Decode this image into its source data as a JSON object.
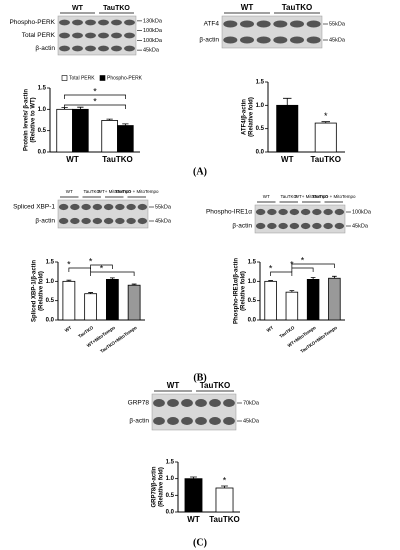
{
  "chart_data": [
    {
      "type": "bar",
      "blot": {
        "groups": [
          "WT",
          "TauTKO"
        ],
        "rows": [
          "Phospho-PERK",
          "Total PERK",
          "β-actin"
        ],
        "markers": [
          "130kDa",
          "100kDa",
          "100kDa",
          "45kDa"
        ]
      },
      "categories": [
        "WT",
        "TauTKO"
      ],
      "series": [
        {
          "name": "Total PERK",
          "color": "#ffffff",
          "values": [
            1.0,
            0.74
          ],
          "errors": [
            0.04,
            0.03
          ]
        },
        {
          "name": "Phospho-PERK",
          "color": "#000000",
          "values": [
            1.0,
            0.62
          ],
          "errors": [
            0.05,
            0.04
          ]
        }
      ],
      "ylabel": [
        "Protein levels/ β-actin",
        "(Relative to WT)"
      ],
      "ylim": [
        0,
        1.5
      ],
      "yticks": [
        {
          "value": 0,
          "label": "0.0"
        },
        0.5,
        {
          "value": 1,
          "label": "1.0"
        },
        1.5
      ],
      "annotations": [
        "*",
        "*"
      ]
    },
    {
      "type": "bar",
      "blot": {
        "groups": [
          "WT",
          "TauTKO"
        ],
        "rows": [
          "ATF4",
          "β-actin"
        ],
        "markers": [
          "55kDa",
          "45kDa"
        ]
      },
      "categories": [
        "WT",
        "TauTKO"
      ],
      "values": [
        1.0,
        0.62
      ],
      "errors": [
        0.15,
        0.03
      ],
      "colors": [
        "#000000",
        "#ffffff"
      ],
      "ylabel": [
        "ATF4/β-actin",
        "(Relative fold)"
      ],
      "ylim": [
        0,
        1.5
      ],
      "yticks": [
        {
          "value": 0,
          "label": "0.0"
        },
        0.5,
        {
          "value": 1,
          "label": "1.0"
        },
        1.5
      ],
      "annotations": [
        "*"
      ],
      "panel_label": "(A)"
    },
    {
      "type": "bar",
      "blot": {
        "groups": [
          "WT",
          "TauTKO",
          "WT+ MitoTempo",
          "TauTKO + MitoTempo"
        ],
        "rows": [
          "Spliced XBP-1",
          "β-actin"
        ],
        "markers": [
          "55kDa",
          "45kDa"
        ]
      },
      "categories": [
        "WT",
        "TauTKO",
        "WT+MitoTempo",
        "TauTKO+MitoTempo"
      ],
      "values": [
        1.0,
        0.68,
        1.05,
        0.9
      ],
      "errors": [
        0.03,
        0.03,
        0.04,
        0.03
      ],
      "colors": [
        "#ffffff",
        "#ffffff",
        "#000000",
        "#999999"
      ],
      "ylabel": [
        "Spliced XBP-1/β-actin",
        "(Relative fold)"
      ],
      "ylim": [
        0,
        1.5
      ],
      "yticks": [
        {
          "value": 0,
          "label": "0.0"
        },
        0.5,
        {
          "value": 1,
          "label": "1.0"
        },
        1.5
      ],
      "annotations": [
        "*",
        "*",
        "*"
      ],
      "panel_label": "(B)"
    },
    {
      "type": "bar",
      "blot": {
        "groups": [
          "WT",
          "TauTKO",
          "WT+ MitoTempo",
          "TauTKO + MitoTempo"
        ],
        "rows": [
          "Phospho-IRE1α",
          "β-actin"
        ],
        "markers": [
          "100kDa",
          "45kDa"
        ]
      },
      "categories": [
        "WT",
        "TauTKO",
        "WT+MitoTempo",
        "TauTKO+MitoTempo"
      ],
      "values": [
        1.0,
        0.72,
        1.05,
        1.08
      ],
      "errors": [
        0.02,
        0.04,
        0.05,
        0.05
      ],
      "colors": [
        "#ffffff",
        "#ffffff",
        "#000000",
        "#999999"
      ],
      "ylabel": [
        "Phospho-IRE1α/β-actin",
        "(Relative fold)"
      ],
      "ylim": [
        0,
        1.5
      ],
      "yticks": [
        {
          "value": 0,
          "label": "0.0"
        },
        0.5,
        {
          "value": 1,
          "label": "1.0"
        },
        1.5
      ],
      "annotations": [
        "*",
        "*",
        "*"
      ]
    },
    {
      "type": "bar",
      "blot": {
        "groups": [
          "WT",
          "TauTKO"
        ],
        "rows": [
          "GRP78",
          "β-actin"
        ],
        "markers": [
          "70kDa",
          "45kDa"
        ]
      },
      "categories": [
        "WT",
        "TauTKO"
      ],
      "values": [
        1.0,
        0.72
      ],
      "errors": [
        0.05,
        0.06
      ],
      "colors": [
        "#000000",
        "#ffffff"
      ],
      "ylabel": [
        "GRP78/β-actin",
        "(Relative fold)"
      ],
      "ylim": [
        0,
        1.5
      ],
      "yticks": [
        {
          "value": 0,
          "label": "0.0"
        },
        0.5,
        {
          "value": 1,
          "label": "1.0"
        },
        1.5
      ],
      "annotations": [
        "*"
      ],
      "panel_label": "(C)"
    }
  ]
}
